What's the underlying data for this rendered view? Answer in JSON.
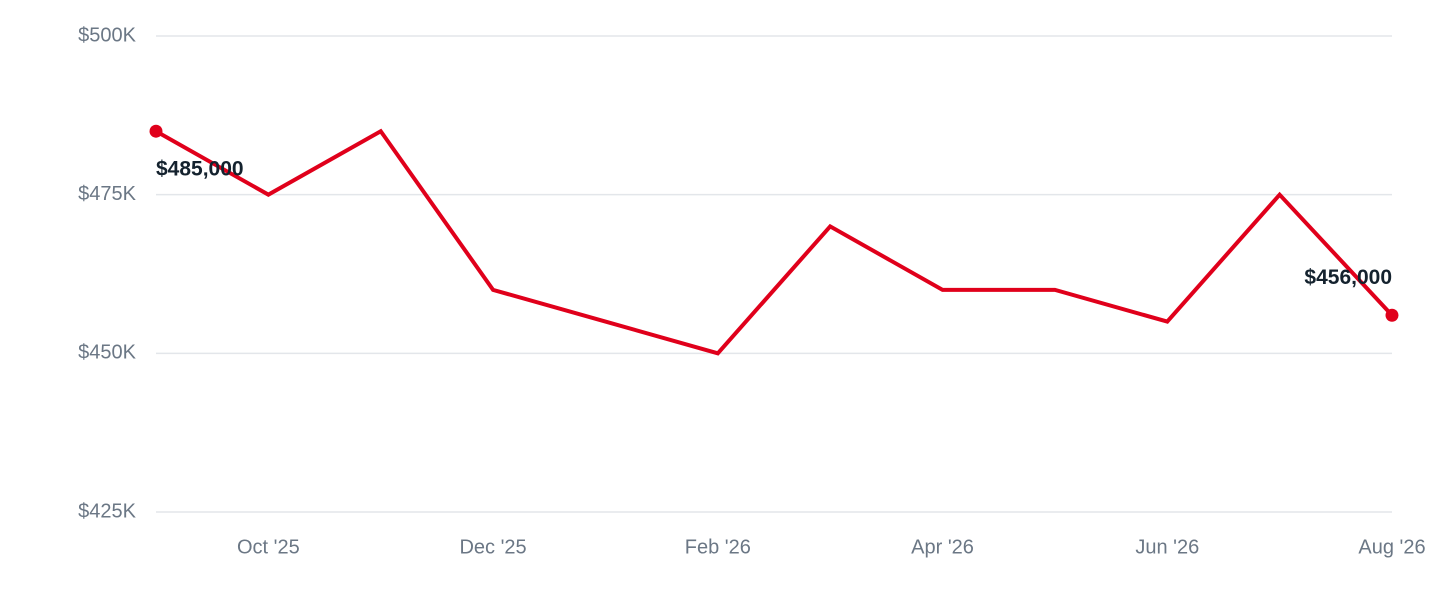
{
  "chart_data": {
    "type": "line",
    "categories": [
      null,
      "Oct '25",
      null,
      "Dec '25",
      null,
      "Feb '26",
      null,
      "Apr '26",
      null,
      "Jun '26",
      null,
      "Aug '26"
    ],
    "series": [
      {
        "color": "#e0001b",
        "values": [
          485000,
          475000,
          485000,
          460000,
          455000,
          450000,
          470000,
          460000,
          460000,
          455000,
          475000,
          456000
        ],
        "value_labels": [
          "$485,000",
          null,
          null,
          null,
          null,
          null,
          null,
          null,
          null,
          null,
          null,
          "$456,000"
        ]
      }
    ],
    "ylim": [
      425000,
      500000
    ],
    "yticks": [
      {
        "value": 425000,
        "label": "$425K"
      },
      {
        "value": 450000,
        "label": "$450K"
      },
      {
        "value": 475000,
        "label": "$475K"
      },
      {
        "value": 500000,
        "label": "$500K"
      }
    ],
    "grid": true
  }
}
